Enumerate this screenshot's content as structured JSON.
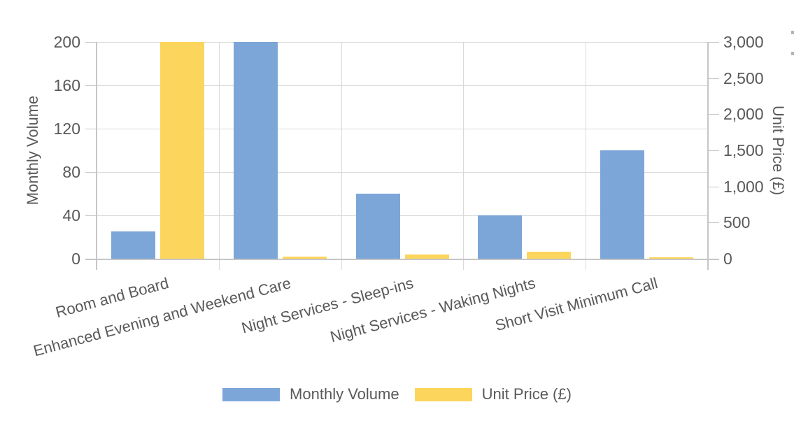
{
  "chart_data": {
    "type": "bar",
    "categories": [
      "Room and Board",
      "Enhanced Evening and Weekend Care",
      "Night Services - Sleep-ins",
      "Night Services - Waking Nights",
      "Short Visit Minimum Call"
    ],
    "series": [
      {
        "name": "Monthly Volume",
        "axis": "left",
        "color": "#7CA6D8",
        "values": [
          25,
          200,
          60,
          40,
          100
        ]
      },
      {
        "name": "Unit Price (£)",
        "axis": "right",
        "color": "#FCD55C",
        "values": [
          3000,
          25,
          60,
          100,
          20
        ]
      }
    ],
    "left_axis": {
      "title": "Monthly Volume",
      "min": 0,
      "max": 200,
      "tick_step": 40,
      "tick_labels": [
        "0",
        "40",
        "80",
        "120",
        "160",
        "200"
      ]
    },
    "right_axis": {
      "title": "Unit Price (£)",
      "min": 0,
      "max": 3000,
      "tick_step": 500,
      "tick_labels": [
        "0",
        "500",
        "1,000",
        "1,500",
        "2,000",
        "2,500",
        "3,000"
      ]
    },
    "legend": [
      "Monthly Volume",
      "Unit Price (£)"
    ],
    "legend_position": "bottom",
    "grid": true,
    "colors": {
      "bar_blue": "#7CA6D8",
      "bar_yellow": "#FCD55C",
      "text": "#595959",
      "gridline": "#d9d9d9",
      "axis_line": "#c6c6c6",
      "background": "#ffffff"
    }
  }
}
